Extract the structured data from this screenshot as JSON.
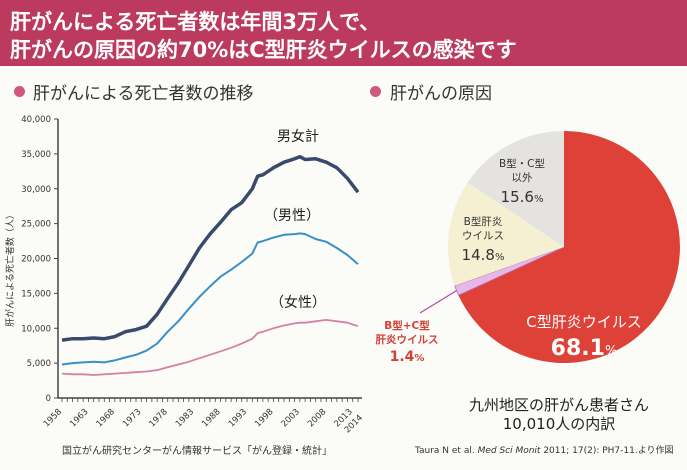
{
  "banner": {
    "line1": "肝がんによる死亡者数は年間3万人で、",
    "line2": "肝がんの原因の約70%はC型肝炎ウイルスの感染です",
    "color": "#bb3a5e"
  },
  "left_section": {
    "title": "肝がんによる死亡者数の推移",
    "source": "国立がん研究センターがん情報サービス「がん登録・統計」"
  },
  "right_section": {
    "title": "肝がんの原因",
    "caption_line1": "九州地区の肝がん患者さん",
    "caption_line2": "10,010人の内訳",
    "citation_pre": "Taura N et al. ",
    "citation_journal": "Med Sci Monit",
    "citation_post": " 2011; 17(2): PH7-11.より作図"
  },
  "chart_data": [
    {
      "type": "line",
      "title": "肝がんによる死亡者数の推移",
      "ylabel": "肝がんによる死亡者数（人）",
      "xlabel": "",
      "ylim": [
        0,
        40000
      ],
      "xlim": [
        1958,
        2014
      ],
      "yticks": [
        "0",
        "5,000",
        "10,000",
        "15,000",
        "20,000",
        "25,000",
        "30,000",
        "35,000",
        "40,000"
      ],
      "ytick_values": [
        0,
        5000,
        10000,
        15000,
        20000,
        25000,
        30000,
        35000,
        40000
      ],
      "xticks": [
        "1958",
        "1963",
        "1968",
        "1973",
        "1978",
        "1983",
        "1988",
        "1993",
        "1998",
        "2003",
        "2008",
        "2013",
        "2014"
      ],
      "xtick_values": [
        1958,
        1963,
        1968,
        1973,
        1978,
        1983,
        1988,
        1993,
        1998,
        2003,
        2008,
        2013,
        2014
      ],
      "x": [
        1958,
        1960,
        1962,
        1964,
        1966,
        1968,
        1970,
        1972,
        1974,
        1976,
        1978,
        1980,
        1982,
        1984,
        1986,
        1988,
        1990,
        1992,
        1994,
        1995,
        1996,
        1998,
        2000,
        2002,
        2003,
        2004,
        2006,
        2008,
        2010,
        2012,
        2014
      ],
      "series": [
        {
          "name": "男女計",
          "label": "男女計",
          "color": "#3a4a6b",
          "values": [
            8300,
            8500,
            8500,
            8600,
            8500,
            8800,
            9500,
            9800,
            10300,
            12000,
            14300,
            16500,
            19000,
            21500,
            23500,
            25200,
            27000,
            28000,
            30000,
            31800,
            32000,
            33000,
            33800,
            34300,
            34600,
            34200,
            34300,
            33800,
            33000,
            31500,
            29500
          ]
        },
        {
          "name": "男性",
          "label": "（男性）",
          "color": "#3a8fc8",
          "values": [
            4800,
            5000,
            5100,
            5200,
            5100,
            5400,
            5800,
            6200,
            6800,
            7800,
            9500,
            11000,
            12800,
            14500,
            16000,
            17400,
            18400,
            19500,
            20700,
            22300,
            22500,
            23000,
            23400,
            23500,
            23600,
            23500,
            22800,
            22400,
            21500,
            20500,
            19200
          ]
        },
        {
          "name": "女性",
          "label": "（女性）",
          "color": "#d77fa6",
          "values": [
            3500,
            3400,
            3400,
            3300,
            3400,
            3500,
            3600,
            3700,
            3800,
            4000,
            4400,
            4800,
            5200,
            5700,
            6200,
            6700,
            7200,
            7800,
            8500,
            9300,
            9500,
            10000,
            10400,
            10700,
            10800,
            10800,
            11000,
            11200,
            11000,
            10800,
            10300
          ]
        }
      ]
    },
    {
      "type": "pie",
      "title": "肝がんの原因",
      "slices": [
        {
          "label": "C型肝炎ウイルス",
          "value": 68.1,
          "display": "68.1",
          "color": "#dd4137"
        },
        {
          "label": "B型+C型肝炎ウイルス",
          "label_line1": "B型+C型",
          "label_line2": "肝炎ウイルス",
          "value": 1.4,
          "display": "1.4",
          "color": "#e6b8e6"
        },
        {
          "label": "B型肝炎ウイルス",
          "label_line1": "B型肝炎",
          "label_line2": "ウイルス",
          "value": 14.8,
          "display": "14.8",
          "color": "#f5f0d2"
        },
        {
          "label": "B型・C型以外",
          "label_line1": "B型・C型",
          "label_line2": "以外",
          "value": 15.6,
          "display": "15.6",
          "color": "#e5e3e0"
        }
      ],
      "unit": "%"
    }
  ]
}
